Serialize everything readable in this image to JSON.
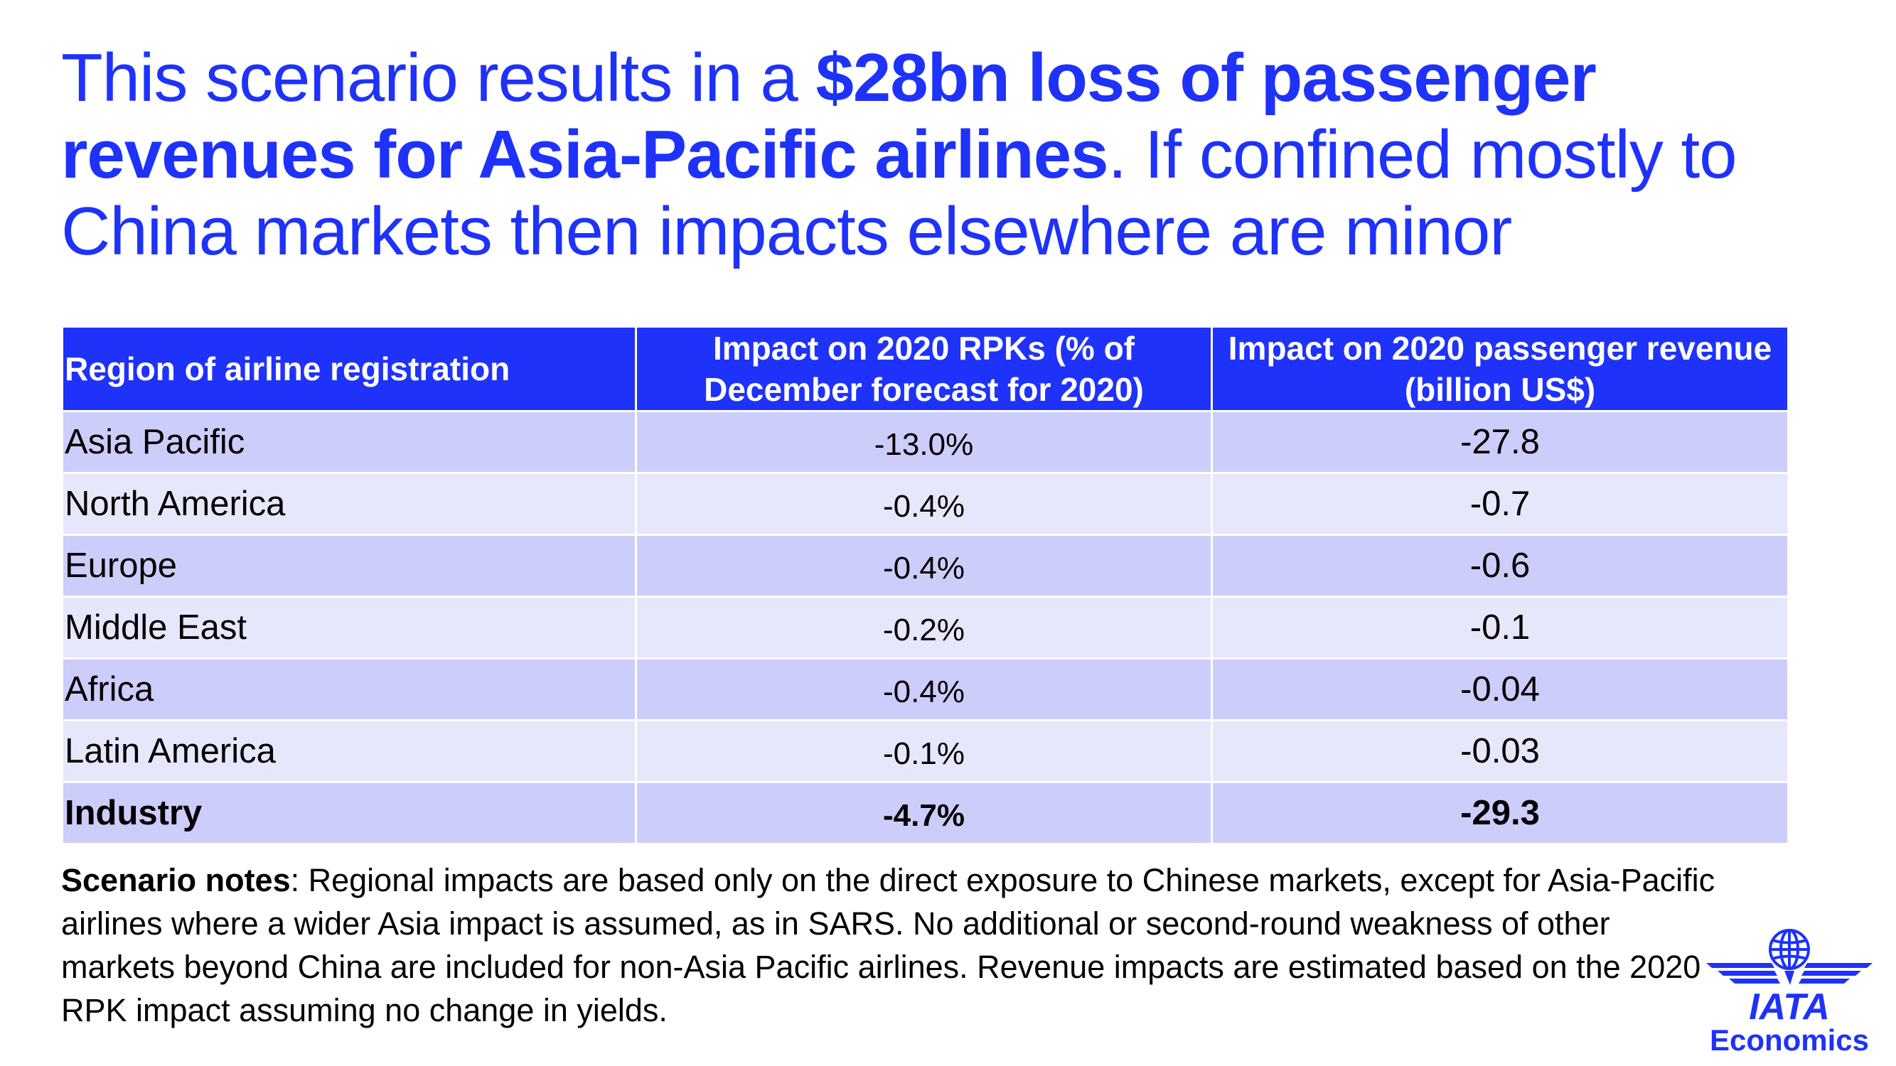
{
  "title": {
    "part1": "This scenario results in a ",
    "bold": "$28bn loss of passenger revenues for Asia-Pacific airlines",
    "part2": ". If confined mostly to China markets then impacts elsewhere are minor"
  },
  "table": {
    "headers": [
      "Region of airline registration",
      "Impact on 2020 RPKs (% of December forecast for 2020)",
      "Impact on 2020 passenger revenue (billion US$)"
    ],
    "rows": [
      {
        "region": "Asia Pacific",
        "rpk": "-13.0%",
        "revenue": "-27.8"
      },
      {
        "region": "North America",
        "rpk": "-0.4%",
        "revenue": "-0.7"
      },
      {
        "region": "Europe",
        "rpk": "-0.4%",
        "revenue": "-0.6"
      },
      {
        "region": "Middle East",
        "rpk": "-0.2%",
        "revenue": "-0.1"
      },
      {
        "region": "Africa",
        "rpk": "-0.4%",
        "revenue": "-0.04"
      },
      {
        "region": "Latin America",
        "rpk": "-0.1%",
        "revenue": "-0.03"
      },
      {
        "region": "Industry",
        "rpk": "-4.7%",
        "revenue": "-29.3"
      }
    ]
  },
  "notes": {
    "label": "Scenario notes",
    "text": ": Regional impacts are based only on the direct exposure to Chinese markets, except for Asia-Pacific airlines where a wider Asia impact is assumed, as in SARS. No additional or second-round weakness of other markets beyond China are included for non-Asia Pacific airlines. Revenue impacts are estimated based on the 2020 RPK impact assuming no change in yields."
  },
  "logo": {
    "brand": "IATA",
    "subtitle": "Economics",
    "icon": "iata-globe-wings-icon"
  },
  "colors": {
    "brand_blue": "#1e32fa",
    "row_dark": "#cccdfa",
    "row_light": "#e6e7fb"
  }
}
